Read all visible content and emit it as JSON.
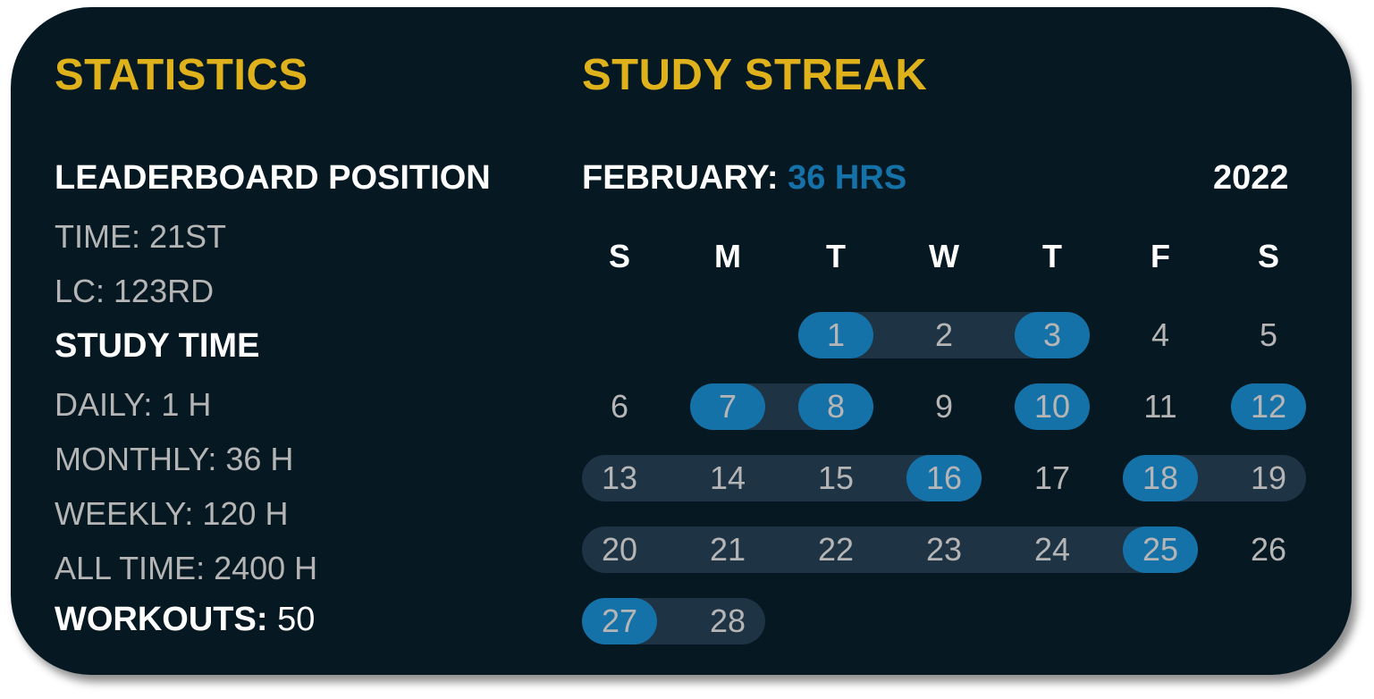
{
  "statistics": {
    "title": "STATISTICS",
    "leaderboard": {
      "heading": "LEADERBOARD POSITION",
      "time": "TIME: 21ST",
      "lc": "LC: 123RD"
    },
    "study_time": {
      "heading": "STUDY TIME",
      "daily": "DAILY: 1 H",
      "monthly": "MONTHLY: 36 H",
      "weekly": "WEEKLY: 120 H",
      "all_time": "ALL TIME: 2400 H"
    },
    "workouts": {
      "label": "WORKOUTS:",
      "value": "50"
    }
  },
  "streak": {
    "title": "STUDY STREAK",
    "month_label": "FEBRUARY:",
    "month_hours": "36 HRS",
    "year": "2022",
    "weekdays": [
      "S",
      "M",
      "T",
      "W",
      "T",
      "F",
      "S"
    ],
    "first_weekday_index": 2,
    "days_in_month": 28,
    "studied_days": [
      1,
      3,
      7,
      8,
      10,
      12,
      16,
      18,
      25,
      27
    ],
    "streak_ranges": [
      [
        1,
        3
      ],
      [
        7,
        8
      ],
      [
        13,
        16
      ],
      [
        18,
        19
      ],
      [
        20,
        25
      ],
      [
        27,
        28
      ]
    ]
  },
  "colors": {
    "title": "#dfb21c",
    "accent": "#1572a8",
    "streak": "#1e3344",
    "background": "#061923"
  }
}
